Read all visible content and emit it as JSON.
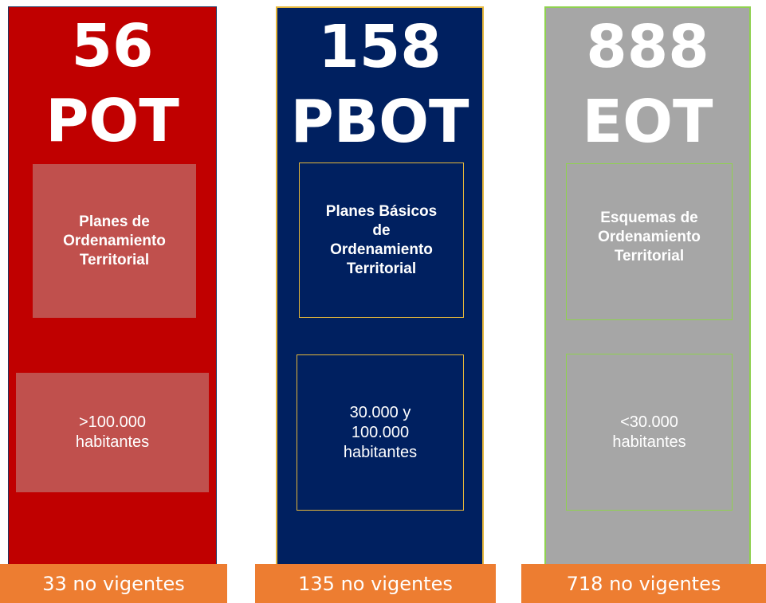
{
  "columns": [
    {
      "number": 56,
      "acronym": "POT",
      "description": [
        "Planes de",
        "Ordenamiento",
        "Territorial"
      ],
      "population": [
        ">100.000",
        "habitantes"
      ],
      "footer": "33 no vigentes"
    },
    {
      "number": 158,
      "acronym": "PBOT",
      "description": [
        "Planes Básicos",
        "de",
        "Ordenamiento",
        "Territorial"
      ],
      "population": [
        "30.000 y",
        "100.000",
        "habitantes"
      ],
      "footer": "135 no vigentes"
    },
    {
      "number": 888,
      "acronym": "EOT",
      "description": [
        "Esquemas de",
        "Ordenamiento",
        "Territorial"
      ],
      "population": [
        "<30.000",
        "habitantes"
      ],
      "footer": "718 no vigentes"
    }
  ]
}
